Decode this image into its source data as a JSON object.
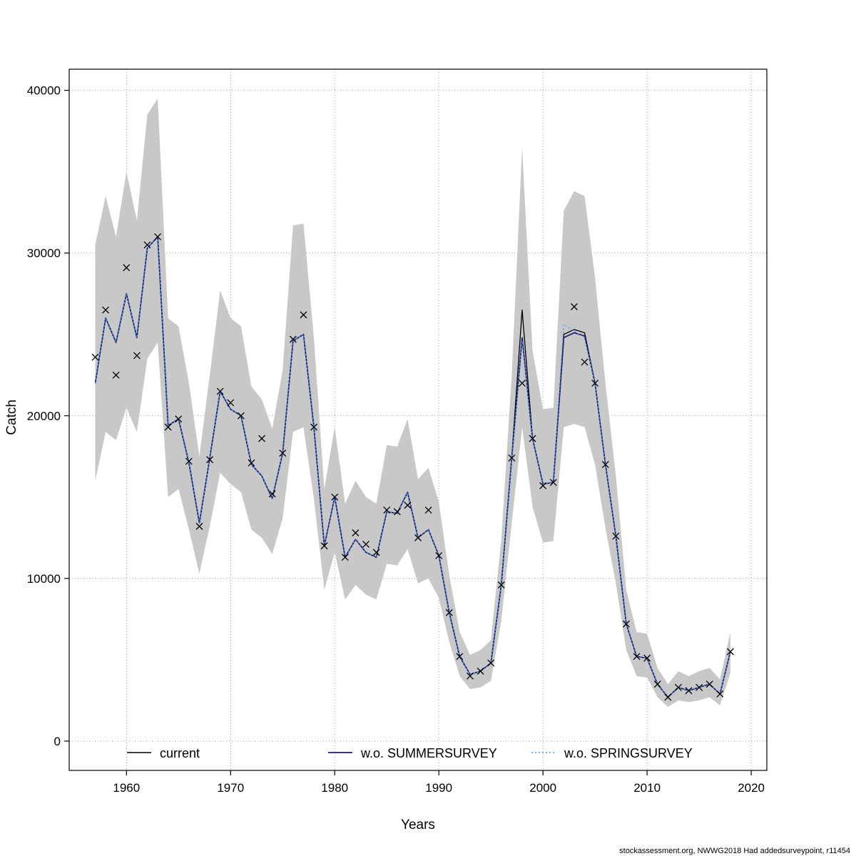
{
  "figure": {
    "description": "Stock assessment catch retrospective / leave-one-out plot with confidence band"
  },
  "footer": {
    "text": "stockassessment.org, NWWG2018 Had addedsurveypoint, r11454"
  },
  "chart_data": {
    "type": "line",
    "title": "",
    "xlabel": "Years",
    "ylabel": "Catch",
    "grid": "dotted",
    "legend_position": "bottom-inside",
    "xlim": [
      1954.5,
      2021.5
    ],
    "ylim": [
      -1800,
      41300
    ],
    "x_ticks": [
      1960,
      1970,
      1980,
      1990,
      2000,
      2010,
      2020
    ],
    "y_ticks": [
      0,
      10000,
      20000,
      30000,
      40000
    ],
    "years": [
      1957,
      1958,
      1959,
      1960,
      1961,
      1962,
      1963,
      1964,
      1965,
      1966,
      1967,
      1968,
      1969,
      1970,
      1971,
      1972,
      1973,
      1974,
      1975,
      1976,
      1977,
      1978,
      1979,
      1980,
      1981,
      1982,
      1983,
      1984,
      1985,
      1986,
      1987,
      1988,
      1989,
      1990,
      1991,
      1992,
      1993,
      1994,
      1995,
      1996,
      1997,
      1998,
      1999,
      2000,
      2001,
      2002,
      2003,
      2004,
      2005,
      2006,
      2007,
      2008,
      2009,
      2010,
      2011,
      2012,
      2013,
      2014,
      2015,
      2016,
      2017,
      2018
    ],
    "band": {
      "color": "#c8c8c8",
      "lower": [
        16000,
        19000,
        18500,
        20500,
        19000,
        23500,
        24500,
        15000,
        15500,
        13000,
        10300,
        13200,
        16500,
        15800,
        15300,
        13000,
        12500,
        11500,
        13700,
        19000,
        19300,
        14900,
        9300,
        11600,
        8700,
        9600,
        9000,
        8700,
        10900,
        10800,
        11800,
        9700,
        10000,
        8800,
        6100,
        4000,
        3200,
        3300,
        3700,
        7400,
        13400,
        19300,
        14400,
        12200,
        12300,
        19300,
        19500,
        19300,
        17000,
        13100,
        9700,
        5600,
        4000,
        3900,
        2700,
        2100,
        2500,
        2400,
        2500,
        2700,
        2200,
        4200
      ],
      "upper": [
        30500,
        33500,
        31000,
        35000,
        32000,
        38500,
        39500,
        26000,
        25500,
        22000,
        17500,
        22500,
        27700,
        26000,
        25500,
        21800,
        21000,
        19200,
        22800,
        31700,
        31800,
        24800,
        15500,
        19300,
        14600,
        16000,
        15000,
        14600,
        18200,
        18100,
        19800,
        16100,
        16800,
        14700,
        10200,
        6700,
        5300,
        5600,
        6200,
        12400,
        22500,
        36500,
        24000,
        20400,
        20500,
        32600,
        33800,
        33500,
        28500,
        22000,
        16300,
        9300,
        6700,
        6600,
        4500,
        3500,
        4300,
        4000,
        4300,
        4500,
        3800,
        6700
      ]
    },
    "series": [
      {
        "name": "current",
        "color": "#000000",
        "style": "solid",
        "width": 1.3,
        "values": [
          22000,
          26000,
          24500,
          27500,
          24800,
          30300,
          31000,
          19400,
          19800,
          17100,
          13400,
          17400,
          21500,
          20400,
          20000,
          17000,
          16300,
          14900,
          17700,
          24600,
          25000,
          19300,
          12000,
          15000,
          11300,
          12400,
          11600,
          11300,
          14100,
          14000,
          15300,
          12500,
          13000,
          11400,
          7900,
          5200,
          4100,
          4300,
          4800,
          9600,
          17400,
          26500,
          18600,
          15800,
          15900,
          25000,
          25300,
          25100,
          22000,
          17000,
          12600,
          7200,
          5200,
          5100,
          3500,
          2700,
          3300,
          3100,
          3300,
          3500,
          2900,
          5500
        ]
      },
      {
        "name": "w.o. SUMMERSURVEY",
        "color": "#1c1c74",
        "style": "solid",
        "width": 1.7,
        "values": [
          22000,
          26000,
          24500,
          27500,
          24800,
          30300,
          31000,
          19400,
          19800,
          17100,
          13400,
          17400,
          21500,
          20400,
          20000,
          17000,
          16300,
          14900,
          17700,
          24600,
          25000,
          19300,
          12000,
          15000,
          11300,
          12400,
          11600,
          11300,
          14100,
          14000,
          15300,
          12500,
          13000,
          11400,
          7900,
          5200,
          4100,
          4300,
          4800,
          9600,
          17400,
          24800,
          18600,
          15800,
          15900,
          24800,
          25100,
          24900,
          22000,
          17000,
          12600,
          7200,
          5200,
          5100,
          3500,
          2700,
          3300,
          3100,
          3300,
          3500,
          2900,
          5500
        ]
      },
      {
        "name": "w.o. SPRINGSURVEY",
        "color": "#4a96e8",
        "style": "dotted",
        "width": 1.3,
        "values": [
          22000,
          26000,
          24500,
          27500,
          24800,
          30300,
          31000,
          19400,
          19800,
          17100,
          13400,
          17400,
          21500,
          20400,
          20000,
          17000,
          16300,
          14900,
          17700,
          24600,
          25000,
          19300,
          12000,
          15000,
          11300,
          12400,
          11600,
          11300,
          14100,
          14000,
          15300,
          12500,
          13000,
          11400,
          7900,
          5200,
          4100,
          4300,
          4800,
          9600,
          17400,
          24600,
          18600,
          15800,
          15900,
          25600,
          25200,
          24800,
          22000,
          17000,
          12600,
          7200,
          5200,
          5100,
          3500,
          2700,
          3300,
          3100,
          3300,
          3500,
          2900,
          5500
        ]
      }
    ],
    "observations": {
      "marker": "x",
      "color": "#000000",
      "values": [
        23600,
        26500,
        22500,
        29100,
        23700,
        30500,
        31000,
        19300,
        19800,
        17200,
        13200,
        17300,
        21500,
        20800,
        20000,
        17100,
        18600,
        15200,
        17700,
        24700,
        26200,
        19300,
        12000,
        15000,
        11300,
        12800,
        12100,
        11600,
        14200,
        14100,
        14500,
        12500,
        14200,
        11400,
        7900,
        5200,
        4000,
        4300,
        4800,
        9600,
        17400,
        22000,
        18600,
        15700,
        15900,
        null,
        26700,
        23300,
        22000,
        17000,
        12600,
        7200,
        5200,
        5100,
        3500,
        2700,
        3300,
        3100,
        3300,
        3500,
        2900,
        5500
      ]
    }
  }
}
